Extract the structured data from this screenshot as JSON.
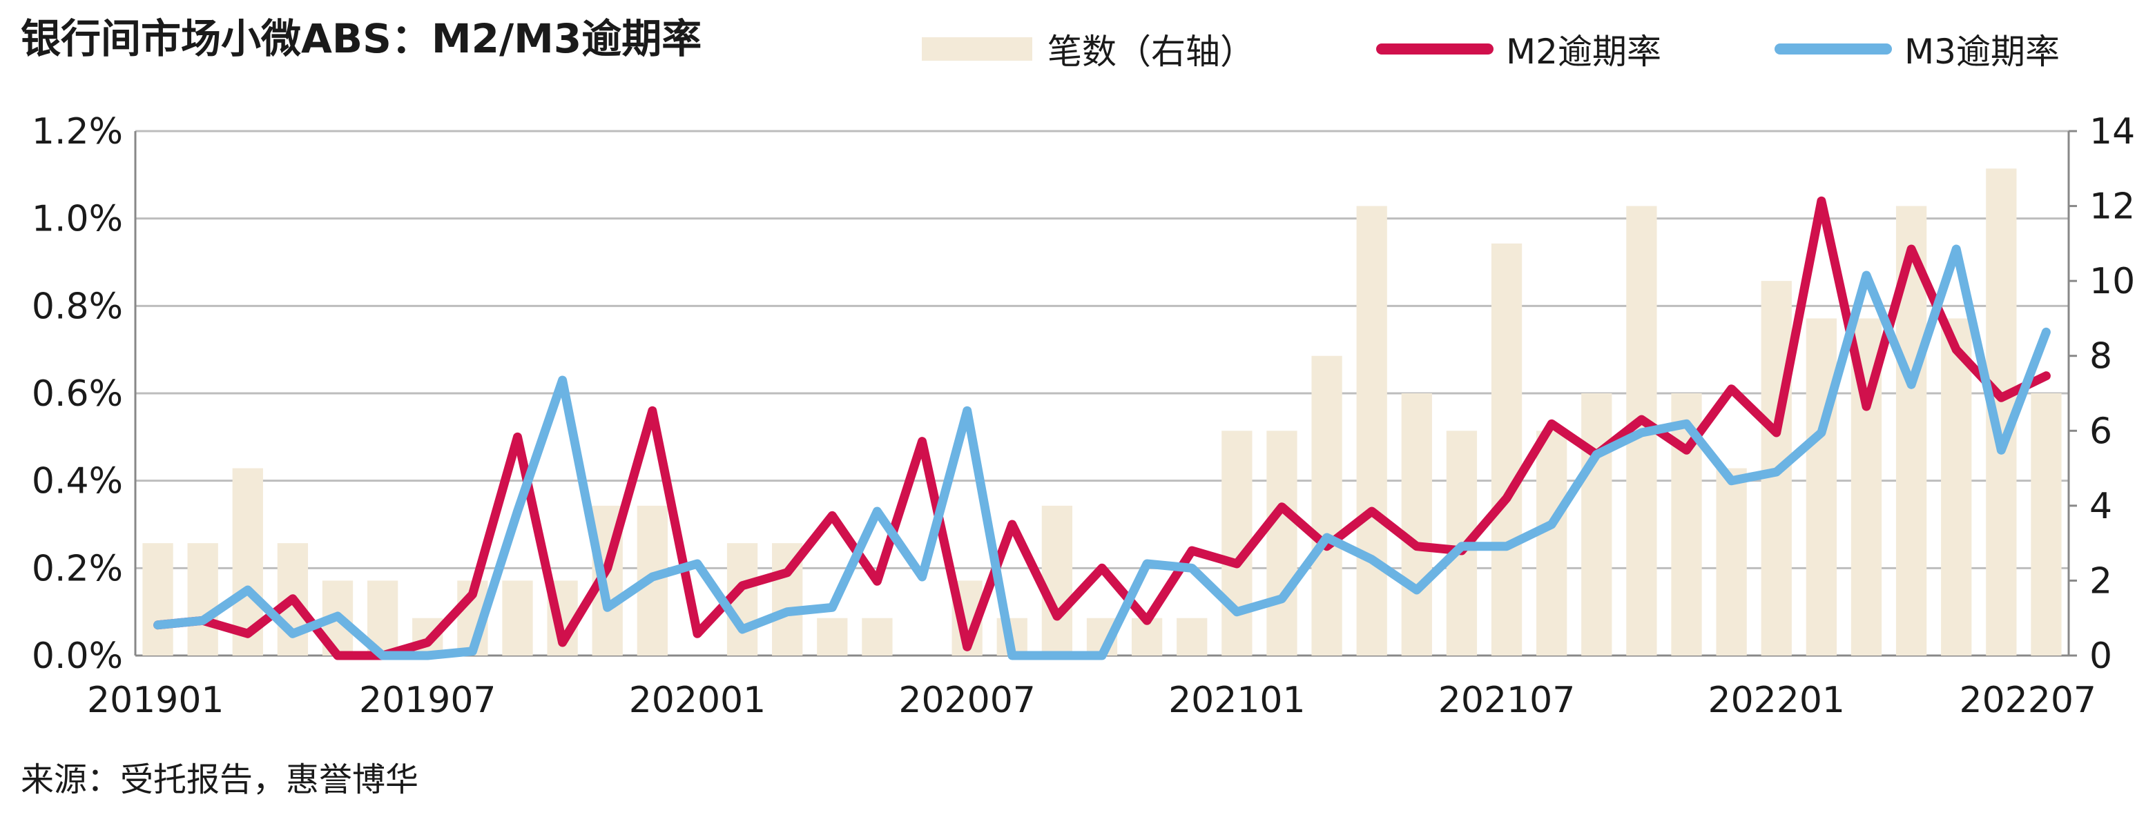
{
  "title": "银行间市场小微ABS：M2/M3逾期率",
  "source": "来源：受托报告，惠誉博华",
  "colors": {
    "bars": "#F3EAD8",
    "m2": "#D0104C",
    "m3": "#6BB3E3",
    "grid": "#BDBDBD",
    "text": "#1a1a1a"
  },
  "chart_data": {
    "type": "bar+line",
    "title": "银行间市场小微ABS：M2/M3逾期率",
    "legend": {
      "placement": "top",
      "entries": [
        "笔数（右轴）",
        "M2逾期率",
        "M3逾期率"
      ]
    },
    "x": [
      "201901",
      "201902",
      "201903",
      "201904",
      "201905",
      "201906",
      "201907",
      "201908",
      "201909",
      "201910",
      "201911",
      "201912",
      "202001",
      "202002",
      "202003",
      "202004",
      "202005",
      "202006",
      "202007",
      "202008",
      "202009",
      "202010",
      "202011",
      "202012",
      "202101",
      "202102",
      "202103",
      "202104",
      "202105",
      "202106",
      "202107",
      "202108",
      "202109",
      "202110",
      "202111",
      "202112",
      "202201",
      "202202",
      "202203",
      "202204",
      "202205",
      "202206",
      "202207"
    ],
    "x_tick_labels": [
      "201901",
      "201907",
      "202001",
      "202007",
      "202101",
      "202107",
      "202201",
      "202207"
    ],
    "y_left": {
      "ticks": [
        "0.0%",
        "0.2%",
        "0.4%",
        "0.6%",
        "0.8%",
        "1.0%",
        "1.2%"
      ],
      "min": 0,
      "max": 1.2,
      "step": 0.2,
      "unit": "%"
    },
    "y_right": {
      "ticks": [
        "0",
        "2",
        "4",
        "6",
        "8",
        "10",
        "12",
        "14"
      ],
      "min": 0,
      "max": 14,
      "step": 2
    },
    "grid": true,
    "series": [
      {
        "name": "笔数（右轴）",
        "kind": "bar",
        "axis": "right",
        "values": [
          3,
          3,
          5,
          3,
          2,
          2,
          1,
          2,
          2,
          2,
          4,
          4,
          0,
          3,
          3,
          1,
          1,
          0,
          2,
          1,
          4,
          1,
          1,
          1,
          6,
          6,
          8,
          12,
          7,
          6,
          11,
          6,
          7,
          12,
          7,
          5,
          10,
          9,
          9,
          12,
          9,
          13,
          7
        ]
      },
      {
        "name": "M2逾期率",
        "kind": "line",
        "axis": "left",
        "values": [
          0.07,
          0.08,
          0.05,
          0.13,
          0.0,
          0.0,
          0.03,
          0.14,
          0.5,
          0.03,
          0.2,
          0.56,
          0.05,
          0.16,
          0.19,
          0.32,
          0.17,
          0.49,
          0.02,
          0.3,
          0.09,
          0.2,
          0.08,
          0.24,
          0.21,
          0.34,
          0.25,
          0.33,
          0.25,
          0.24,
          0.36,
          0.53,
          0.46,
          0.54,
          0.47,
          0.61,
          0.51,
          1.04,
          0.57,
          0.93,
          0.7,
          0.59,
          0.64
        ]
      },
      {
        "name": "M3逾期率",
        "kind": "line",
        "axis": "left",
        "values": [
          0.07,
          0.08,
          0.15,
          0.05,
          0.09,
          0.0,
          0.0,
          0.01,
          0.33,
          0.63,
          0.11,
          0.18,
          0.21,
          0.06,
          0.1,
          0.11,
          0.33,
          0.18,
          0.56,
          0.0,
          0.0,
          0.0,
          0.21,
          0.2,
          0.1,
          0.13,
          0.27,
          0.22,
          0.15,
          0.25,
          0.25,
          0.3,
          0.46,
          0.51,
          0.53,
          0.4,
          0.42,
          0.51,
          0.87,
          0.62,
          0.93,
          0.47,
          0.74
        ]
      }
    ]
  }
}
